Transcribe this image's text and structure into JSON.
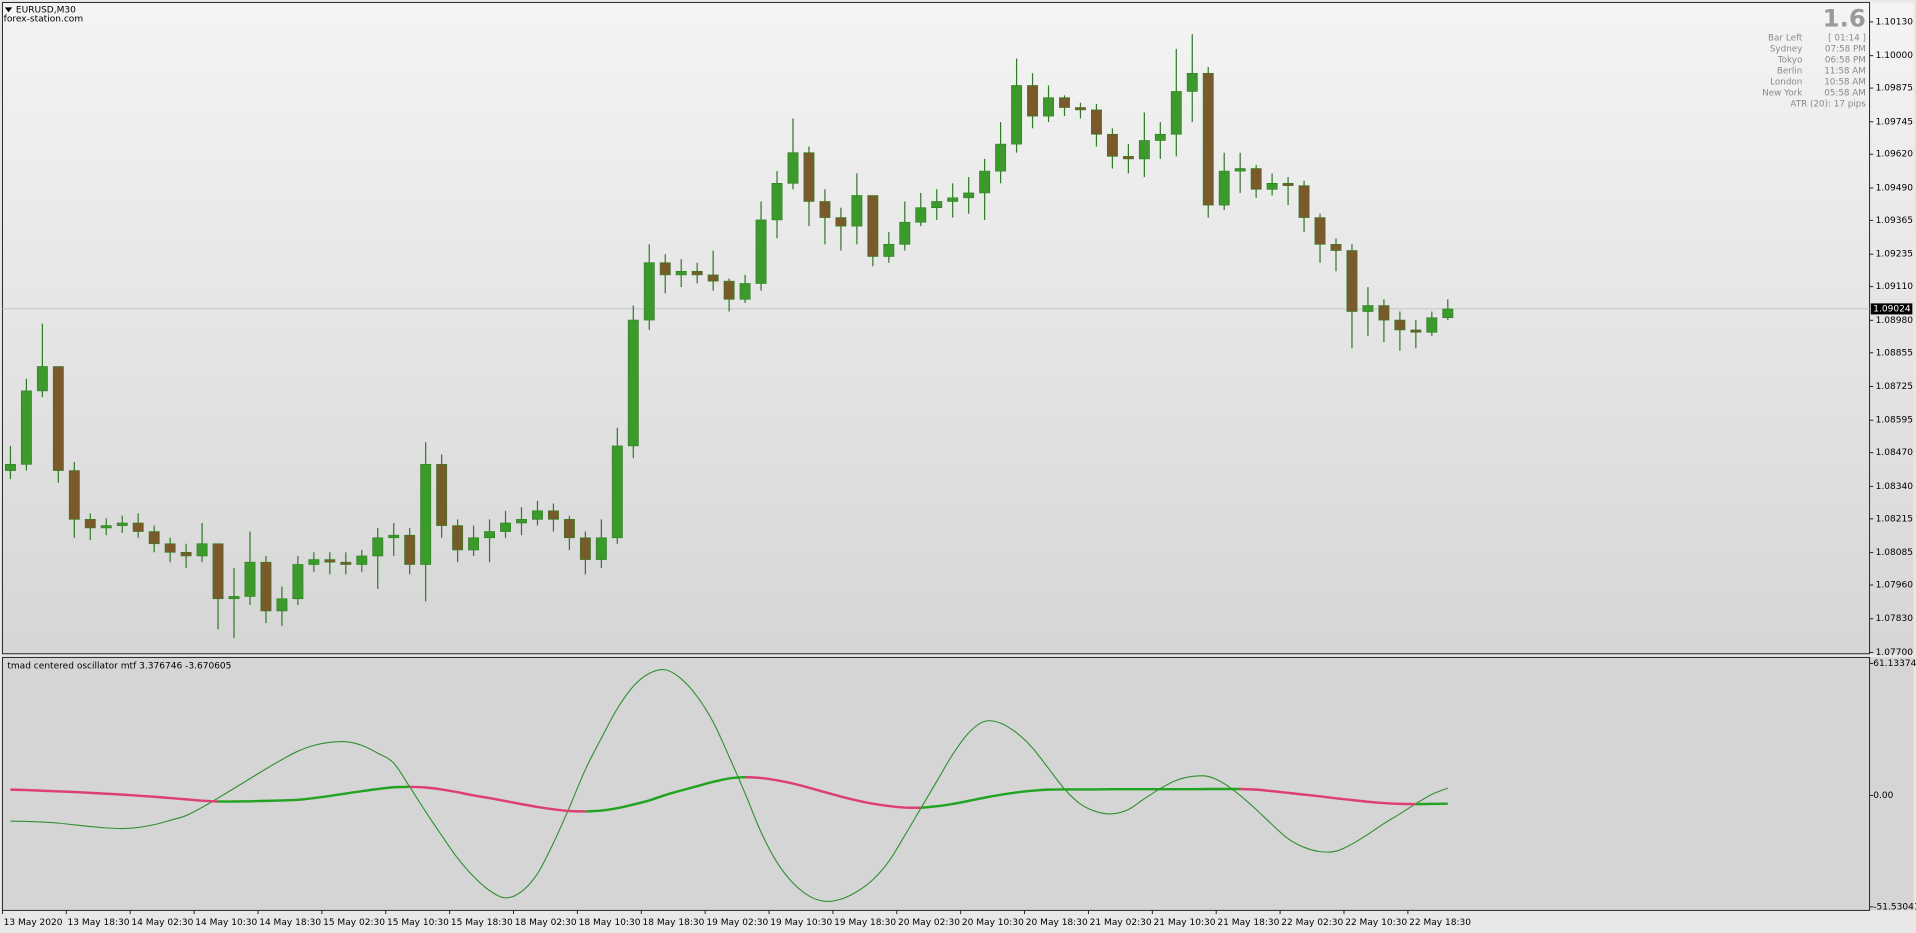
{
  "header": {
    "symbol": "EURUSD,M30",
    "source": "forex-station.com"
  },
  "info_panel": {
    "spread": "1.6",
    "rows": [
      [
        "Bar Left",
        "[ 01:14 ]"
      ],
      [
        "Sydney",
        "07:58 PM"
      ],
      [
        "Tokyo",
        "06:58 PM"
      ],
      [
        "Berlin",
        "11:58 AM"
      ],
      [
        "London",
        "10:58 AM"
      ],
      [
        "New York",
        "05:58 AM"
      ]
    ],
    "atr": "ATR (20): 17 pips"
  },
  "chart_data": [
    {
      "type": "candlestick",
      "categories": [
        "13 May 2020",
        null,
        null,
        null,
        "13 May 18:30",
        null,
        null,
        null,
        "14 May 02:30",
        null,
        null,
        null,
        "14 May 10:30",
        null,
        null,
        null,
        "14 May 18:30",
        null,
        null,
        null,
        "15 May 02:30",
        null,
        null,
        null,
        "15 May 10:30",
        null,
        null,
        null,
        "15 May 18:30",
        null,
        null,
        null,
        "18 May 02:30",
        null,
        null,
        null,
        "18 May 10:30",
        null,
        null,
        null,
        "18 May 18:30",
        null,
        null,
        null,
        "19 May 02:30",
        null,
        null,
        null,
        "19 May 10:30",
        null,
        null,
        null,
        "19 May 18:30",
        null,
        null,
        null,
        "20 May 02:30",
        null,
        null,
        null,
        "20 May 10:30",
        null,
        null,
        null,
        "20 May 18:30",
        null,
        null,
        null,
        "21 May 02:30",
        null,
        null,
        null,
        "21 May 10:30",
        null,
        null,
        null,
        "21 May 18:30",
        null,
        null,
        null,
        "22 May 02:30",
        null,
        null,
        null,
        "22 May 10:30",
        null,
        null,
        null,
        "22 May 18:30",
        null,
        null
      ],
      "open": [
        1.08401,
        1.08425,
        1.08708,
        1.08802,
        1.08401,
        1.08213,
        1.0818,
        1.08189,
        1.08199,
        1.08166,
        1.08119,
        1.08086,
        1.08072,
        1.08119,
        1.07907,
        1.07916,
        1.08048,
        1.0786,
        1.07907,
        1.08039,
        1.08058,
        1.08048,
        1.08039,
        1.08072,
        1.08142,
        1.08152,
        1.08039,
        1.08425,
        1.08189,
        1.08095,
        1.08142,
        1.08166,
        1.08199,
        1.08213,
        1.08246,
        1.08213,
        1.08142,
        1.08058,
        1.08142,
        1.08496,
        1.08981,
        1.09202,
        1.09155,
        1.09169,
        1.09155,
        1.09131,
        1.09061,
        1.09122,
        1.09367,
        1.09508,
        1.09626,
        1.09438,
        1.09376,
        1.09343,
        1.09461,
        1.09226,
        1.09273,
        1.09358,
        1.09414,
        1.09438,
        1.09452,
        1.09471,
        1.09555,
        1.09659,
        1.09885,
        1.09767,
        1.09838,
        1.098,
        1.09791,
        1.09697,
        1.09612,
        1.09602,
        1.09673,
        1.09697,
        1.09862,
        1.09932,
        1.09424,
        1.09555,
        1.09565,
        1.09485,
        1.09508,
        1.09499,
        1.09376,
        1.09273,
        1.09249,
        1.09014,
        1.09037,
        1.08981,
        1.08943,
        1.08934,
        1.0899
      ],
      "high": [
        1.08496,
        1.08755,
        1.08967,
        1.08802,
        1.08434,
        1.08236,
        1.08217,
        1.08227,
        1.08236,
        1.08189,
        1.08142,
        1.08119,
        1.08199,
        1.08119,
        1.08025,
        1.08166,
        1.08072,
        1.07954,
        1.08072,
        1.08086,
        1.08086,
        1.08086,
        1.08095,
        1.0818,
        1.08199,
        1.0818,
        1.0851,
        1.08463,
        1.08213,
        1.08189,
        1.08213,
        1.08246,
        1.0826,
        1.08284,
        1.08274,
        1.08227,
        1.08166,
        1.08213,
        1.08566,
        1.09037,
        1.09273,
        1.09235,
        1.09216,
        1.09202,
        1.09249,
        1.09141,
        1.09155,
        1.09438,
        1.09555,
        1.09758,
        1.0965,
        1.09485,
        1.09414,
        1.09546,
        1.09461,
        1.0932,
        1.09438,
        1.09471,
        1.09485,
        1.09508,
        1.09532,
        1.09602,
        1.09744,
        1.09989,
        1.09932,
        1.09885,
        1.09847,
        1.09819,
        1.09814,
        1.0972,
        1.09659,
        1.09781,
        1.09744,
        1.10026,
        1.10083,
        1.09956,
        1.09626,
        1.09626,
        1.09579,
        1.09546,
        1.09532,
        1.09518,
        1.09391,
        1.09296,
        1.09273,
        1.09108,
        1.09061,
        1.09014,
        1.08981,
        1.09014,
        1.09061
      ],
      "low": [
        1.08368,
        1.08401,
        1.08684,
        1.08354,
        1.08142,
        1.08133,
        1.08152,
        1.08161,
        1.08142,
        1.08086,
        1.08048,
        1.08025,
        1.08048,
        1.07789,
        1.07756,
        1.07883,
        1.07813,
        1.07803,
        1.07883,
        1.08011,
        1.08001,
        1.08001,
        1.08011,
        1.07945,
        1.08072,
        1.08001,
        1.07897,
        1.08142,
        1.08048,
        1.08072,
        1.08048,
        1.08142,
        1.08152,
        1.08189,
        1.08166,
        1.08095,
        1.08001,
        1.08025,
        1.08119,
        1.08449,
        1.08943,
        1.09084,
        1.09108,
        1.09122,
        1.09094,
        1.09014,
        1.09047,
        1.09094,
        1.09296,
        1.09485,
        1.09343,
        1.09273,
        1.09249,
        1.09273,
        1.09188,
        1.09202,
        1.09249,
        1.09343,
        1.09367,
        1.09376,
        1.09391,
        1.09367,
        1.09508,
        1.09626,
        1.0972,
        1.09744,
        1.09767,
        1.09758,
        1.0965,
        1.09565,
        1.09546,
        1.09532,
        1.09602,
        1.09612,
        1.09744,
        1.09376,
        1.09405,
        1.09471,
        1.09452,
        1.09461,
        1.09424,
        1.0932,
        1.09202,
        1.09169,
        1.08872,
        1.0892,
        1.08896,
        1.08863,
        1.08872,
        1.0892,
        1.08981
      ],
      "close": [
        1.08425,
        1.08708,
        1.08802,
        1.08401,
        1.08213,
        1.0818,
        1.08189,
        1.08199,
        1.08166,
        1.08119,
        1.08086,
        1.08072,
        1.08119,
        1.07907,
        1.07916,
        1.08048,
        1.0786,
        1.07907,
        1.08039,
        1.08058,
        1.08048,
        1.08039,
        1.08072,
        1.08142,
        1.08152,
        1.08039,
        1.08425,
        1.08189,
        1.08095,
        1.08142,
        1.08166,
        1.08199,
        1.08213,
        1.08246,
        1.08213,
        1.08142,
        1.08058,
        1.08142,
        1.08496,
        1.08981,
        1.09202,
        1.09155,
        1.09169,
        1.09155,
        1.09131,
        1.09061,
        1.09122,
        1.09367,
        1.09508,
        1.09626,
        1.09438,
        1.09376,
        1.09343,
        1.09461,
        1.09226,
        1.09273,
        1.09358,
        1.09414,
        1.09438,
        1.09452,
        1.09471,
        1.09555,
        1.09659,
        1.09885,
        1.09767,
        1.09838,
        1.098,
        1.09791,
        1.09697,
        1.09612,
        1.09602,
        1.09673,
        1.09697,
        1.09862,
        1.09932,
        1.09424,
        1.09555,
        1.09565,
        1.09485,
        1.09508,
        1.09499,
        1.09376,
        1.09273,
        1.09249,
        1.09014,
        1.09037,
        1.08981,
        1.08943,
        1.08934,
        1.0899,
        1.09024
      ],
      "last_price": 1.09024,
      "colors": {
        "up": "#3c9a2c",
        "down": "#7a5a2a",
        "wick": "#2e7d24",
        "last_price_line": "#c4c4c4"
      },
      "ylim": [
        1.07695,
        1.10205
      ],
      "yticks": [
        {
          "value": 1.1013,
          "label": "1.10130"
        },
        {
          "value": 1.1,
          "label": "1.10000"
        },
        1.09875,
        1.09745,
        {
          "value": 1.0962,
          "label": "1.09620"
        },
        {
          "value": 1.0949,
          "label": "1.09490"
        },
        1.09365,
        1.09235,
        {
          "value": 1.0911,
          "label": "1.09110"
        },
        {
          "value": 1.0898,
          "label": "1.08980"
        },
        1.08855,
        1.08725,
        1.08595,
        {
          "value": 1.0847,
          "label": "1.08470"
        },
        {
          "value": 1.0834,
          "label": "1.08340"
        },
        1.08215,
        1.08085,
        {
          "value": 1.0796,
          "label": "1.07960"
        },
        {
          "value": 1.0783,
          "label": "1.07830"
        },
        {
          "value": 1.077,
          "label": "1.07700"
        }
      ],
      "grid": false
    },
    {
      "type": "line",
      "title": "tmad centered oscillator mtf 3.376746 -3.670605",
      "ylim": [
        -53.2,
        63.9
      ],
      "yticks": [
        61.133746,
        {
          "value": 0,
          "label": "0.00"
        },
        -51.53041
      ],
      "grid": false,
      "series": [
        {
          "color": "#2f8f2f",
          "width": 0.9,
          "values": [
            -11.9,
            -12.0,
            -12.3,
            -12.8,
            -13.6,
            -14.4,
            -15.0,
            -15.3,
            -14.8,
            -13.5,
            -11.5,
            -9.3,
            -5.5,
            -1.2,
            3.3,
            7.8,
            12.3,
            16.6,
            20.5,
            23.2,
            24.6,
            24.9,
            23.2,
            19.6,
            15.0,
            4.0,
            -7.5,
            -18.5,
            -29.0,
            -37.5,
            -44.0,
            -47.4,
            -44.5,
            -36.2,
            -22.0,
            -5.5,
            12.0,
            26.5,
            40.2,
            50.5,
            56.5,
            58.2,
            54.0,
            45.8,
            34.0,
            18.0,
            1.0,
            -17.0,
            -31.0,
            -40.5,
            -46.5,
            -49.0,
            -48.0,
            -44.5,
            -39.0,
            -30.5,
            -18.5,
            -6.0,
            6.5,
            19.0,
            29.0,
            34.3,
            33.5,
            29.0,
            22.0,
            12.5,
            3.0,
            -4.0,
            -7.5,
            -8.5,
            -6.5,
            -1.5,
            3.2,
            7.0,
            8.8,
            8.8,
            5.5,
            0.0,
            -6.5,
            -13.5,
            -20.0,
            -24.0,
            -26.0,
            -25.8,
            -22.5,
            -18.0,
            -13.0,
            -8.5,
            -3.8,
            0.5,
            3.4
          ]
        },
        {
          "color": "#dd3f72",
          "width": 2,
          "values": [
            2.7,
            2.5,
            2.2,
            1.9,
            1.6,
            1.2,
            0.8,
            0.4,
            -0.1,
            -0.6,
            -1.2,
            -1.8,
            -2.4,
            -2.8,
            null,
            null,
            null,
            null,
            null,
            null,
            null,
            null,
            null,
            null,
            null,
            4.0,
            3.7,
            2.8,
            1.5,
            0.0,
            -1.2,
            -2.6,
            -4.0,
            -5.3,
            -6.4,
            -7.2,
            -7.4,
            null,
            null,
            null,
            null,
            null,
            null,
            null,
            null,
            null,
            8.5,
            8.1,
            7.0,
            5.5,
            3.6,
            1.5,
            -0.5,
            -2.3,
            -3.8,
            -4.9,
            -5.6,
            -5.7,
            null,
            null,
            null,
            null,
            null,
            null,
            null,
            null,
            null,
            null,
            null,
            null,
            null,
            null,
            null,
            null,
            null,
            null,
            null,
            3.0,
            2.7,
            2.0,
            1.2,
            0.4,
            -0.4,
            -1.3,
            -2.1,
            -2.9,
            -3.5,
            -3.9,
            -4.0,
            null,
            null
          ]
        },
        {
          "color": "#22a322",
          "width": 2,
          "values": [
            null,
            null,
            null,
            null,
            null,
            null,
            null,
            null,
            null,
            null,
            null,
            null,
            null,
            -2.8,
            -2.8,
            -2.7,
            -2.5,
            -2.3,
            -2.0,
            -1.2,
            -0.2,
            0.9,
            2.0,
            3.0,
            3.8,
            4.0,
            null,
            null,
            null,
            null,
            null,
            null,
            null,
            null,
            null,
            null,
            -7.4,
            -7.0,
            -5.9,
            -4.2,
            -2.3,
            0.2,
            2.3,
            4.3,
            6.3,
            7.9,
            8.5,
            null,
            null,
            null,
            null,
            null,
            null,
            null,
            null,
            null,
            null,
            -5.7,
            -5.0,
            -3.9,
            -2.5,
            -1.0,
            0.3,
            1.4,
            2.2,
            2.7,
            2.8,
            2.8,
            2.8,
            2.9,
            2.9,
            2.9,
            2.9,
            2.9,
            2.9,
            3.0,
            3.0,
            3.0,
            null,
            null,
            null,
            null,
            null,
            null,
            null,
            null,
            null,
            null,
            -4.0,
            -3.9,
            -3.8
          ]
        }
      ]
    }
  ]
}
